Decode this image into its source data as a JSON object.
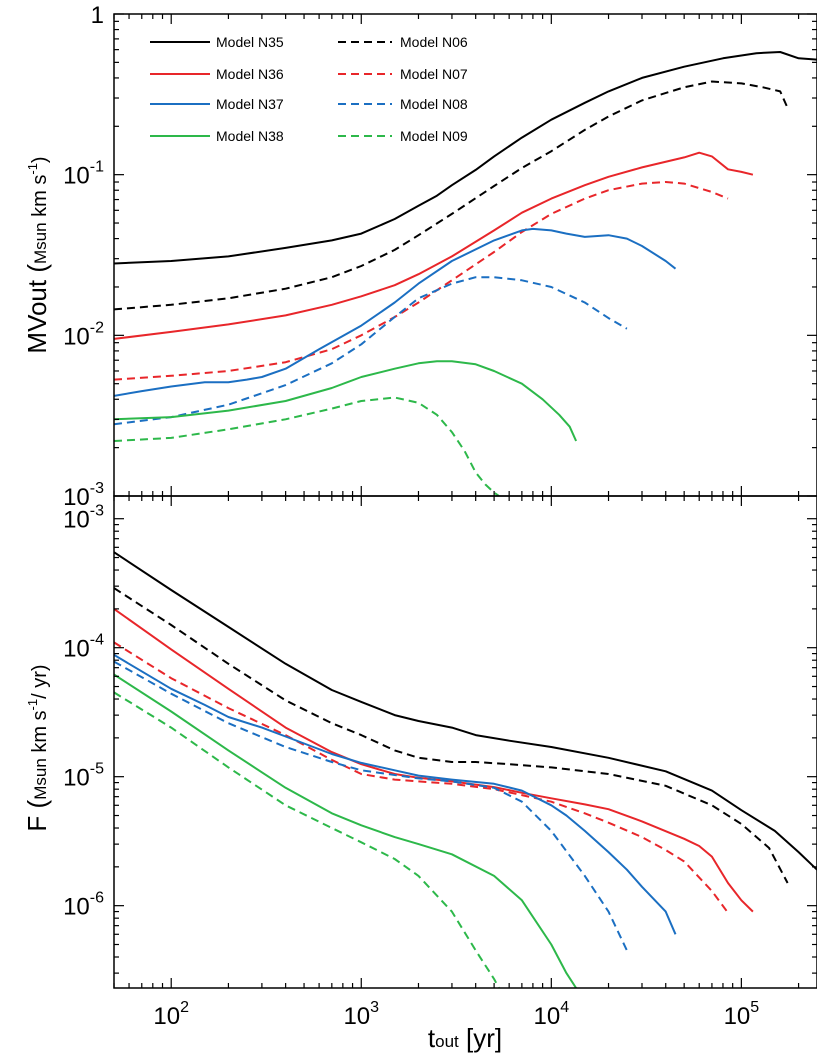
{
  "chart_data": [
    {
      "type": "line",
      "panel": "top",
      "xscale": "log",
      "yscale": "log",
      "xlim": [
        50,
        250000
      ],
      "ylim": [
        0.001,
        1
      ],
      "ylabel_main": "MVout (",
      "ylabel_sub": "Msun",
      "ylabel_tail": " km s",
      "ylabel_sup": "-1",
      "ylabel_close": ")",
      "ytick_labels": [
        {
          "value": 0.001,
          "base": "10",
          "exp": "-3"
        },
        {
          "value": 0.01,
          "base": "10",
          "exp": "-2"
        },
        {
          "value": 0.1,
          "base": "10",
          "exp": "-1"
        },
        {
          "value": 1,
          "base": "1",
          "exp": ""
        }
      ],
      "legend_position": "top-left",
      "series": [
        {
          "name": "Model N35",
          "color": "#000000",
          "dash": "solid",
          "x": [
            50,
            100,
            200,
            400,
            700,
            1000,
            1500,
            2000,
            2500,
            3000,
            4000,
            5000,
            7000,
            10000,
            15000,
            20000,
            30000,
            50000,
            80000,
            120000,
            160000,
            200000,
            250000
          ],
          "y": [
            0.028,
            0.029,
            0.031,
            0.035,
            0.039,
            0.043,
            0.053,
            0.064,
            0.074,
            0.086,
            0.107,
            0.13,
            0.17,
            0.22,
            0.28,
            0.33,
            0.4,
            0.47,
            0.53,
            0.57,
            0.58,
            0.53,
            0.52
          ]
        },
        {
          "name": "Model N06",
          "color": "#000000",
          "dash": "dashed",
          "x": [
            50,
            100,
            200,
            400,
            700,
            1000,
            1500,
            2000,
            3000,
            5000,
            7000,
            10000,
            15000,
            20000,
            30000,
            50000,
            70000,
            100000,
            130000,
            160000,
            175000
          ],
          "y": [
            0.0145,
            0.0155,
            0.017,
            0.0195,
            0.023,
            0.027,
            0.034,
            0.042,
            0.057,
            0.085,
            0.11,
            0.14,
            0.19,
            0.23,
            0.29,
            0.35,
            0.38,
            0.37,
            0.35,
            0.33,
            0.26
          ]
        },
        {
          "name": "Model N36",
          "color": "#e8262a",
          "dash": "solid",
          "x": [
            50,
            100,
            200,
            400,
            700,
            1000,
            1500,
            2000,
            3000,
            5000,
            7000,
            10000,
            15000,
            20000,
            30000,
            50000,
            60000,
            70000,
            85000,
            100000,
            115000
          ],
          "y": [
            0.0095,
            0.0105,
            0.0117,
            0.0133,
            0.0155,
            0.0175,
            0.0205,
            0.024,
            0.031,
            0.045,
            0.058,
            0.071,
            0.086,
            0.097,
            0.111,
            0.128,
            0.137,
            0.13,
            0.108,
            0.104,
            0.1
          ]
        },
        {
          "name": "Model N07",
          "color": "#e8262a",
          "dash": "dashed",
          "x": [
            50,
            100,
            200,
            400,
            700,
            1000,
            1500,
            2000,
            3000,
            5000,
            7000,
            10000,
            15000,
            20000,
            30000,
            40000,
            50000,
            70000,
            85000
          ],
          "y": [
            0.0053,
            0.0056,
            0.006,
            0.0068,
            0.0082,
            0.01,
            0.013,
            0.016,
            0.022,
            0.033,
            0.044,
            0.057,
            0.071,
            0.08,
            0.088,
            0.09,
            0.088,
            0.078,
            0.071
          ]
        },
        {
          "name": "Model N37",
          "color": "#1b6fc2",
          "dash": "solid",
          "x": [
            50,
            70,
            100,
            150,
            200,
            250,
            300,
            400,
            600,
            1000,
            1500,
            2000,
            3000,
            5000,
            7000,
            8000,
            10000,
            12000,
            15000,
            20000,
            25000,
            30000,
            40000,
            45000
          ],
          "y": [
            0.0042,
            0.0045,
            0.0048,
            0.0051,
            0.0051,
            0.0053,
            0.0055,
            0.0062,
            0.0082,
            0.0115,
            0.016,
            0.021,
            0.029,
            0.039,
            0.045,
            0.046,
            0.045,
            0.043,
            0.041,
            0.042,
            0.04,
            0.036,
            0.029,
            0.026
          ]
        },
        {
          "name": "Model N08",
          "color": "#1b6fc2",
          "dash": "dashed",
          "x": [
            50,
            100,
            200,
            400,
            700,
            1000,
            1500,
            2000,
            3000,
            4000,
            5000,
            7000,
            10000,
            15000,
            20000,
            25000
          ],
          "y": [
            0.0028,
            0.0031,
            0.0037,
            0.0049,
            0.0067,
            0.0088,
            0.013,
            0.017,
            0.021,
            0.023,
            0.023,
            0.022,
            0.02,
            0.016,
            0.0128,
            0.011
          ]
        },
        {
          "name": "Model N38",
          "color": "#2db84a",
          "dash": "solid",
          "x": [
            50,
            100,
            200,
            400,
            700,
            1000,
            1500,
            2000,
            2500,
            3000,
            4000,
            5000,
            7000,
            9000,
            11000,
            12500,
            13500
          ],
          "y": [
            0.003,
            0.0031,
            0.0034,
            0.0039,
            0.0047,
            0.0055,
            0.0062,
            0.0067,
            0.0069,
            0.0069,
            0.0066,
            0.006,
            0.005,
            0.004,
            0.0032,
            0.0027,
            0.0022
          ]
        },
        {
          "name": "Model N09",
          "color": "#2db84a",
          "dash": "dashed",
          "x": [
            50,
            100,
            200,
            400,
            700,
            1000,
            1500,
            2000,
            2500,
            3000,
            3500,
            4000,
            4500,
            5000,
            5300
          ],
          "y": [
            0.0022,
            0.0023,
            0.0026,
            0.003,
            0.0035,
            0.0039,
            0.0041,
            0.0038,
            0.0032,
            0.0025,
            0.0019,
            0.0014,
            0.00118,
            0.00105,
            0.001
          ]
        }
      ]
    },
    {
      "type": "line",
      "panel": "bottom",
      "xscale": "log",
      "yscale": "log",
      "xlim": [
        50,
        250000
      ],
      "ylim": [
        2.3e-07,
        0.0015
      ],
      "ylabel_main": "F (",
      "ylabel_sub": "Msun",
      "ylabel_tail": " km s",
      "ylabel_sup": "-1",
      "ylabel_close": "/ yr)",
      "ytick_labels": [
        {
          "value": 1e-06,
          "base": "10",
          "exp": "-6"
        },
        {
          "value": 1e-05,
          "base": "10",
          "exp": "-5"
        },
        {
          "value": 0.0001,
          "base": "10",
          "exp": "-4"
        },
        {
          "value": 0.001,
          "base": "10",
          "exp": "-3"
        }
      ],
      "xtick_labels": [
        {
          "value": 100,
          "base": "10",
          "exp": "2"
        },
        {
          "value": 1000,
          "base": "10",
          "exp": "3"
        },
        {
          "value": 10000,
          "base": "10",
          "exp": "4"
        },
        {
          "value": 100000,
          "base": "10",
          "exp": "5"
        }
      ],
      "xlabel_main": "t",
      "xlabel_sub": "out",
      "xlabel_tail": " [yr]",
      "series": [
        {
          "name": "Model N35",
          "color": "#000000",
          "dash": "solid",
          "x": [
            50,
            100,
            200,
            400,
            700,
            1000,
            1500,
            2000,
            3000,
            4000,
            6000,
            10000,
            20000,
            40000,
            70000,
            100000,
            150000,
            200000,
            250000
          ],
          "y": [
            0.00055,
            0.00028,
            0.000145,
            7.5e-05,
            4.7e-05,
            3.8e-05,
            3e-05,
            2.7e-05,
            2.4e-05,
            2.1e-05,
            1.9e-05,
            1.7e-05,
            1.4e-05,
            1.1e-05,
            7.8e-06,
            5.5e-06,
            3.8e-06,
            2.6e-06,
            1.9e-06
          ]
        },
        {
          "name": "Model N06",
          "color": "#000000",
          "dash": "dashed",
          "x": [
            50,
            100,
            200,
            400,
            700,
            1000,
            1500,
            2000,
            3000,
            4000,
            6000,
            10000,
            20000,
            40000,
            70000,
            100000,
            140000,
            175000
          ],
          "y": [
            0.00029,
            0.00015,
            7.5e-05,
            3.9e-05,
            2.6e-05,
            2.1e-05,
            1.6e-05,
            1.4e-05,
            1.3e-05,
            1.3e-05,
            1.25e-05,
            1.18e-05,
            1.05e-05,
            8.5e-06,
            6e-06,
            4.3e-06,
            2.8e-06,
            1.5e-06
          ]
        },
        {
          "name": "Model N36",
          "color": "#e8262a",
          "dash": "solid",
          "x": [
            50,
            100,
            200,
            400,
            700,
            1000,
            1500,
            2000,
            3000,
            5000,
            7000,
            10000,
            15000,
            20000,
            30000,
            50000,
            60000,
            70000,
            85000,
            100000,
            115000
          ],
          "y": [
            0.0002,
            9.7e-05,
            4.8e-05,
            2.4e-05,
            1.55e-05,
            1.25e-05,
            1.05e-05,
            9.8e-06,
            9.2e-06,
            8.3e-06,
            7.5e-06,
            6.8e-06,
            6.1e-06,
            5.6e-06,
            4.5e-06,
            3.3e-06,
            2.9e-06,
            2.4e-06,
            1.5e-06,
            1.1e-06,
            9e-07
          ]
        },
        {
          "name": "Model N07",
          "color": "#e8262a",
          "dash": "dashed",
          "x": [
            50,
            100,
            200,
            400,
            700,
            1000,
            1500,
            2000,
            3000,
            5000,
            7000,
            10000,
            15000,
            20000,
            30000,
            40000,
            50000,
            70000,
            85000
          ],
          "y": [
            0.00011,
            5.8e-05,
            3.4e-05,
            2.1e-05,
            1.35e-05,
            1.05e-05,
            9.5e-06,
            9.2e-06,
            8.8e-06,
            8e-06,
            7.2e-06,
            6.4e-06,
            5.2e-06,
            4.4e-06,
            3.4e-06,
            2.7e-06,
            2.2e-06,
            1.3e-06,
            8.8e-07
          ]
        },
        {
          "name": "Model N37",
          "color": "#1b6fc2",
          "dash": "solid",
          "x": [
            50,
            100,
            150,
            200,
            300,
            400,
            700,
            1000,
            1500,
            2000,
            3000,
            5000,
            7000,
            10000,
            12000,
            15000,
            20000,
            25000,
            30000,
            40000,
            45000
          ],
          "y": [
            8.8e-05,
            4.8e-05,
            3.6e-05,
            2.9e-05,
            2.4e-05,
            2.05e-05,
            1.5e-05,
            1.28e-05,
            1.12e-05,
            1.02e-05,
            9.5e-06,
            8.8e-06,
            7.8e-06,
            6e-06,
            5e-06,
            3.8e-06,
            2.6e-06,
            1.9e-06,
            1.4e-06,
            9e-07,
            6e-07
          ]
        },
        {
          "name": "Model N08",
          "color": "#1b6fc2",
          "dash": "dashed",
          "x": [
            50,
            100,
            200,
            400,
            700,
            1000,
            1500,
            2000,
            3000,
            5000,
            7000,
            10000,
            15000,
            20000,
            25000
          ],
          "y": [
            7.8e-05,
            4.4e-05,
            2.6e-05,
            1.7e-05,
            1.3e-05,
            1.12e-05,
            1.03e-05,
            9.7e-06,
            9.2e-06,
            8.2e-06,
            6.4e-06,
            3.8e-06,
            1.7e-06,
            9e-07,
            4.5e-07
          ]
        },
        {
          "name": "Model N38",
          "color": "#2db84a",
          "dash": "solid",
          "x": [
            50,
            100,
            200,
            400,
            700,
            1000,
            1500,
            2000,
            3000,
            5000,
            7000,
            10000,
            12000,
            13500
          ],
          "y": [
            6.2e-05,
            3.2e-05,
            1.6e-05,
            8.2e-06,
            5.2e-06,
            4.2e-06,
            3.4e-06,
            3e-06,
            2.5e-06,
            1.7e-06,
            1.1e-06,
            5e-07,
            3e-07,
            2.3e-07
          ]
        },
        {
          "name": "Model N09",
          "color": "#2db84a",
          "dash": "dashed",
          "x": [
            50,
            100,
            200,
            400,
            700,
            1000,
            1500,
            2000,
            3000,
            4000,
            5000,
            5300
          ],
          "y": [
            4.5e-05,
            2.4e-05,
            1.18e-05,
            6e-06,
            4e-06,
            3.1e-06,
            2.3e-06,
            1.7e-06,
            9e-07,
            4.5e-07,
            2.7e-07,
            2.3e-07
          ]
        }
      ]
    }
  ]
}
